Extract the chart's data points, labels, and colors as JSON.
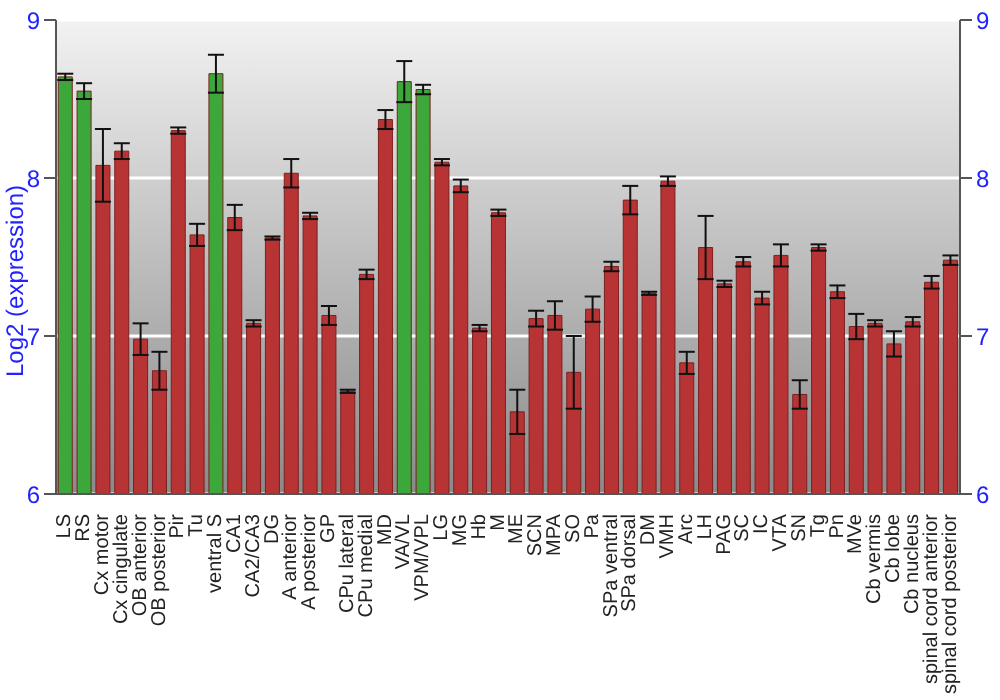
{
  "chart_data": {
    "type": "bar",
    "ylabel": "Log2 (expression)",
    "categories": [
      "LS",
      "RS",
      "Cx motor",
      "Cx cingulate",
      "OB anterior",
      "OB posterior",
      "Pir",
      "Tu",
      "ventral S",
      "CA1",
      "CA2/CA3",
      "DG",
      "A anterior",
      "A posterior",
      "GP",
      "CPu lateral",
      "CPu medial",
      "MD",
      "VA/VL",
      "VPM/VPL",
      "LG",
      "MG",
      "Hb",
      "M",
      "ME",
      "SCN",
      "MPA",
      "SO",
      "Pa",
      "SPa ventral",
      "SPa dorsal",
      "DM",
      "VMH",
      "Arc",
      "LH",
      "PAG",
      "SC",
      "IC",
      "VTA",
      "SN",
      "Tg",
      "Pn",
      "MVe",
      "Cb vermis",
      "Cb lobe",
      "Cb nucleus",
      "spinal cord anterior",
      "spinal cord posterior"
    ],
    "values": [
      8.64,
      8.55,
      8.08,
      8.17,
      6.98,
      6.78,
      8.3,
      7.64,
      8.66,
      7.75,
      7.08,
      7.62,
      8.03,
      7.76,
      7.13,
      6.65,
      7.39,
      8.37,
      8.61,
      8.56,
      8.1,
      7.95,
      7.05,
      7.78,
      6.52,
      7.11,
      7.13,
      6.77,
      7.17,
      7.44,
      7.86,
      7.27,
      7.98,
      6.83,
      7.56,
      7.33,
      7.47,
      7.24,
      7.51,
      6.63,
      7.56,
      7.28,
      7.06,
      7.08,
      6.95,
      7.09,
      7.34,
      7.48
    ],
    "errors": [
      0.02,
      0.05,
      0.23,
      0.05,
      0.1,
      0.12,
      0.02,
      0.07,
      0.12,
      0.08,
      0.02,
      0.01,
      0.09,
      0.02,
      0.06,
      0.01,
      0.03,
      0.06,
      0.13,
      0.03,
      0.02,
      0.04,
      0.02,
      0.02,
      0.14,
      0.05,
      0.09,
      0.23,
      0.08,
      0.03,
      0.09,
      0.01,
      0.03,
      0.07,
      0.2,
      0.02,
      0.03,
      0.04,
      0.07,
      0.09,
      0.02,
      0.04,
      0.08,
      0.02,
      0.08,
      0.03,
      0.04,
      0.03
    ],
    "colors": [
      "#3ca83c",
      "#3ca83c",
      "#b83434",
      "#b83434",
      "#b83434",
      "#b83434",
      "#b83434",
      "#b83434",
      "#3ca83c",
      "#b83434",
      "#b83434",
      "#b83434",
      "#b83434",
      "#b83434",
      "#b83434",
      "#b83434",
      "#b83434",
      "#b83434",
      "#3ca83c",
      "#3ca83c",
      "#b83434",
      "#b83434",
      "#b83434",
      "#b83434",
      "#b83434",
      "#b83434",
      "#b83434",
      "#b83434",
      "#b83434",
      "#b83434",
      "#b83434",
      "#b83434",
      "#b83434",
      "#b83434",
      "#b83434",
      "#b83434",
      "#b83434",
      "#b83434",
      "#b83434",
      "#b83434",
      "#b83434",
      "#b83434",
      "#b83434",
      "#b83434",
      "#b83434",
      "#b83434",
      "#b83434",
      "#b83434"
    ],
    "ylim": [
      6,
      9
    ],
    "yticks": [
      6,
      7,
      8,
      9
    ],
    "y2lim": [
      6,
      9
    ],
    "y2ticks": [
      6,
      7,
      8,
      9
    ],
    "grid": "y",
    "legend": false
  }
}
